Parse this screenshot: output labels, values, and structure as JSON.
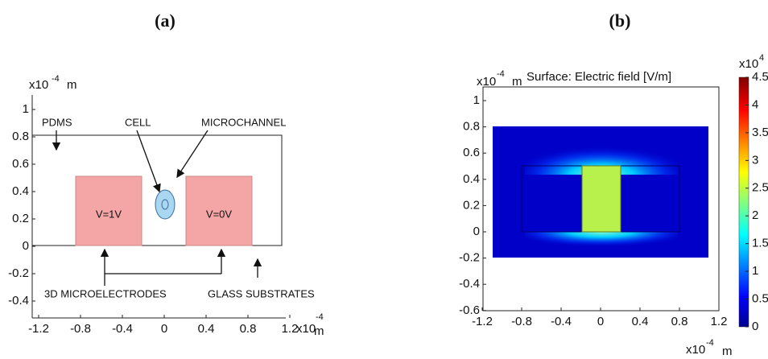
{
  "panel_a": {
    "label": "(a)",
    "scale_base": "x10",
    "scale_exponent": "-4",
    "unit": "m",
    "xticks": [
      -1.2,
      -0.8,
      -0.4,
      0,
      0.4,
      0.8,
      1.2
    ],
    "yticks": [
      -0.4,
      -0.2,
      0,
      0.2,
      0.4,
      0.6,
      0.8,
      1
    ],
    "annotations": {
      "pdms": "PDMS",
      "cell": "CELL",
      "microchannel": "MICROCHANNEL",
      "left_electrode": "V=1V",
      "right_electrode": "V=0V",
      "electrodes": "3D MICROELECTRODES",
      "glass": "GLASS SUBSTRATES"
    }
  },
  "panel_b": {
    "label": "(b)",
    "title": "Surface: Electric field [V/m]",
    "scale_base": "x10",
    "scale_exponent": "-4",
    "unit": "m",
    "xticks": [
      -1.2,
      -0.8,
      -0.4,
      0,
      0.4,
      0.8,
      1.2
    ],
    "yticks": [
      -0.6,
      -0.4,
      -0.2,
      0,
      0.2,
      0.4,
      0.6,
      0.8,
      1
    ],
    "colorbar": {
      "scale_base": "x10",
      "scale_exponent": "4",
      "lim": [
        0,
        4.5
      ],
      "ticks": [
        0,
        0.5,
        1,
        1.5,
        2,
        2.5,
        3,
        3.5,
        4,
        4.5
      ]
    }
  }
}
